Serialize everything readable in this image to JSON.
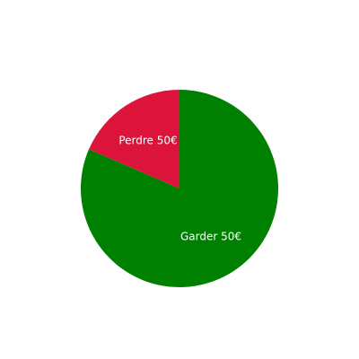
{
  "chart_data": {
    "type": "pie",
    "labels": [
      "Garder 50€",
      "Perdre 50€"
    ],
    "values": [
      81.5,
      18.5
    ],
    "colors": [
      "#008000",
      "#dc143c"
    ],
    "start_angle_deg": 0,
    "direction": "clockwise",
    "legend": "none"
  }
}
